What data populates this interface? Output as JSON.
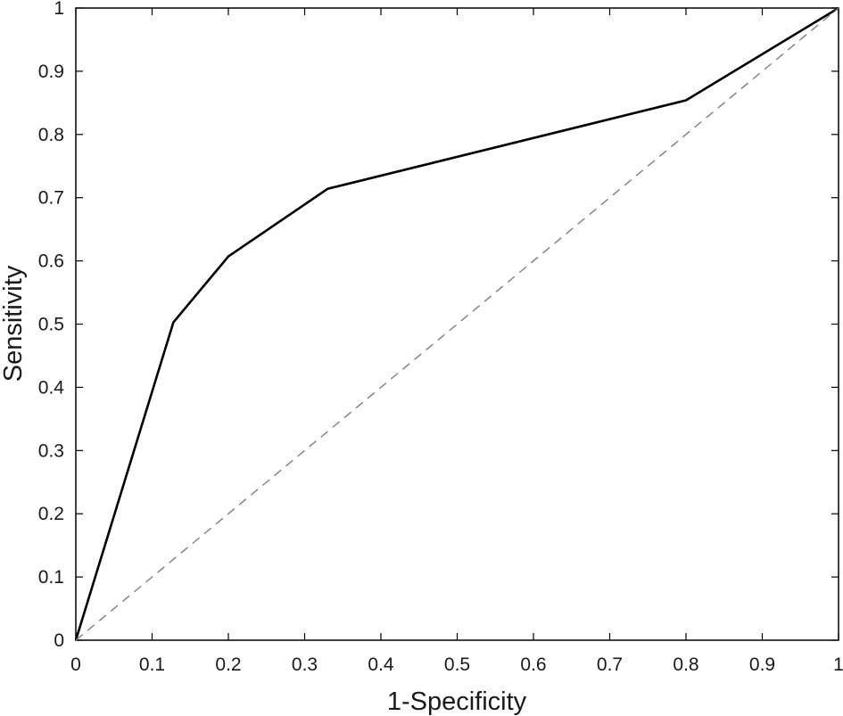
{
  "chart_data": {
    "type": "line",
    "title": "",
    "xlabel": "1-Specificity",
    "ylabel": "Sensitivity",
    "xlim": [
      0,
      1
    ],
    "ylim": [
      0,
      1
    ],
    "x_ticks": [
      "0",
      "0.1",
      "0.2",
      "0.3",
      "0.4",
      "0.5",
      "0.6",
      "0.7",
      "0.8",
      "0.9",
      "1"
    ],
    "y_ticks": [
      "0",
      "0.1",
      "0.2",
      "0.3",
      "0.4",
      "0.5",
      "0.6",
      "0.7",
      "0.8",
      "0.9",
      "1"
    ],
    "grid": false,
    "legend": "none",
    "series": [
      {
        "style": "solid",
        "color": "#000000",
        "x": [
          0,
          0.128,
          0.2,
          0.33,
          0.8,
          1
        ],
        "y": [
          0,
          0.503,
          0.607,
          0.714,
          0.854,
          1
        ]
      },
      {
        "style": "dashed",
        "color": "#7f7f7f",
        "x": [
          0,
          1
        ],
        "y": [
          0,
          1
        ]
      }
    ]
  }
}
